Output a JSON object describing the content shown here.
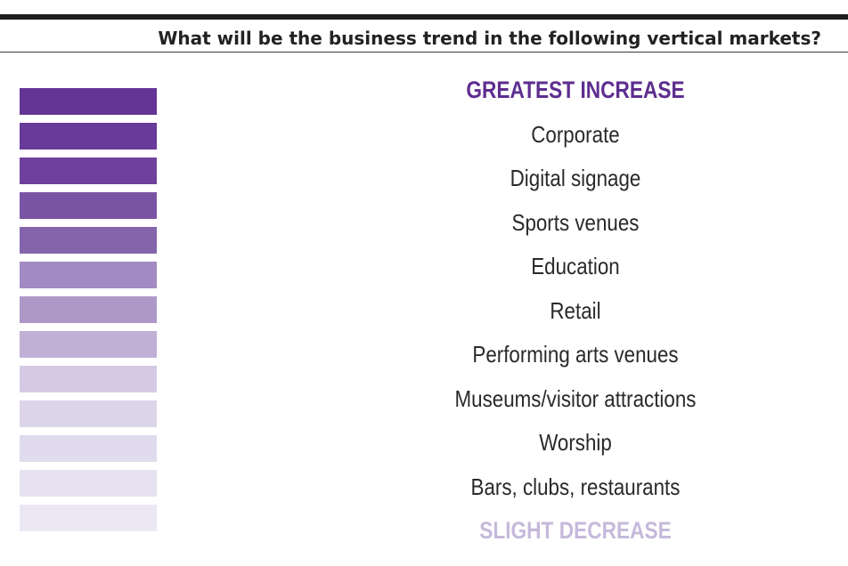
{
  "chart_data": {
    "type": "table",
    "title": "What will be the business trend in the following vertical markets?",
    "scale_top_label": "GREATEST INCREASE",
    "scale_bottom_label": "SLIGHT DECREASE",
    "categories": [
      "Corporate",
      "Digital signage",
      "Sports venues",
      "Education",
      "Retail",
      "Performing arts venues",
      "Museums/visitor attractions",
      "Worship",
      "Bars, clubs, restaurants"
    ],
    "swatch_colors": [
      "#643594",
      "#683a99",
      "#6e429c",
      "#7a54a4",
      "#8464ab",
      "#a28ac2",
      "#ae98c8",
      "#c0b0d6",
      "#d4cae4",
      "#dcd5e9",
      "#e0dbed",
      "#e6e2f1",
      "#ebe8f4"
    ],
    "colors": {
      "top_label": "#5e2e8f",
      "bottom_label": "#c5badb"
    }
  }
}
